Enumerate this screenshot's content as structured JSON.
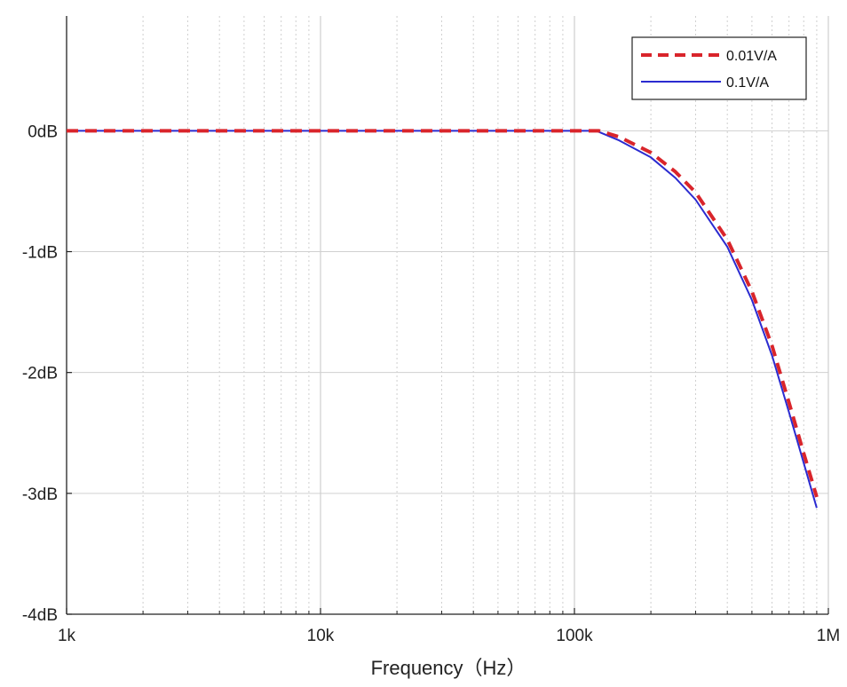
{
  "chart_data": {
    "type": "line",
    "title": "",
    "xlabel": "Frequency（Hz）",
    "ylabel": "",
    "x_scale": "log",
    "xlim": [
      1000,
      1000000
    ],
    "ylim": [
      -4,
      0.95
    ],
    "x_ticks": [
      {
        "value": 1000,
        "label": "1k"
      },
      {
        "value": 10000,
        "label": "10k"
      },
      {
        "value": 100000,
        "label": "100k"
      },
      {
        "value": 1000000,
        "label": "1M"
      }
    ],
    "y_ticks": [
      {
        "value": 0,
        "label": "0dB"
      },
      {
        "value": -1,
        "label": "-1dB"
      },
      {
        "value": -2,
        "label": "-2dB"
      },
      {
        "value": -3,
        "label": "-3dB"
      },
      {
        "value": -4,
        "label": "-4dB"
      }
    ],
    "grid": true,
    "legend_position": "top-right",
    "series": [
      {
        "name": "0.01V/A",
        "color": "#d9252b",
        "style": "dashed",
        "x": [
          1000,
          10000,
          100000,
          125000,
          150000,
          200000,
          250000,
          300000,
          400000,
          500000,
          600000,
          700000,
          800000,
          900000
        ],
        "y": [
          0,
          0,
          0,
          0,
          -0.05,
          -0.18,
          -0.34,
          -0.51,
          -0.9,
          -1.33,
          -1.78,
          -2.25,
          -2.67,
          -3.03
        ]
      },
      {
        "name": "0.1V/A",
        "color": "#2b2bd0",
        "style": "solid",
        "x": [
          1000,
          10000,
          100000,
          122000,
          150000,
          200000,
          250000,
          300000,
          400000,
          500000,
          600000,
          700000,
          800000,
          900000
        ],
        "y": [
          0,
          0,
          0,
          0,
          -0.08,
          -0.22,
          -0.39,
          -0.57,
          -0.96,
          -1.4,
          -1.86,
          -2.33,
          -2.75,
          -3.12
        ]
      }
    ]
  }
}
